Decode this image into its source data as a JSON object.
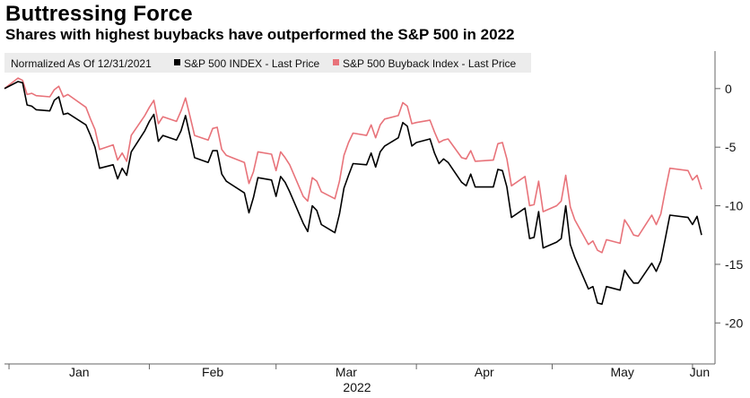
{
  "title": "Buttressing Force",
  "subtitle": "Shares with highest buybacks have outperformed the S&P 500 in 2022",
  "chart_data": {
    "type": "line",
    "title": "Buttressing Force",
    "subtitle": "Shares with highest buybacks have outperformed the S&P 500 in 2022",
    "legend": {
      "placement": "top-left",
      "note": "Normalized As Of 12/31/2021",
      "entries": [
        "S&P 500 INDEX - Last Price",
        "S&P 500 Buyback Index - Last Price"
      ]
    },
    "xlabel": "2022",
    "x_ticks": [
      "Jan",
      "Feb",
      "Mar",
      "Apr",
      "May",
      "Jun"
    ],
    "x_range": [
      "2021-12-31",
      "2022-06-03"
    ],
    "y_axis_side": "right",
    "ylim": [
      -23.5,
      3.2
    ],
    "y_ticks": [
      0,
      -5,
      -10,
      -15,
      -20
    ],
    "grid": false,
    "x": [
      "2021-12-31",
      "2022-01-03",
      "2022-01-04",
      "2022-01-05",
      "2022-01-06",
      "2022-01-07",
      "2022-01-10",
      "2022-01-11",
      "2022-01-12",
      "2022-01-13",
      "2022-01-14",
      "2022-01-18",
      "2022-01-19",
      "2022-01-20",
      "2022-01-21",
      "2022-01-24",
      "2022-01-25",
      "2022-01-26",
      "2022-01-27",
      "2022-01-28",
      "2022-01-31",
      "2022-02-01",
      "2022-02-02",
      "2022-02-03",
      "2022-02-04",
      "2022-02-07",
      "2022-02-08",
      "2022-02-09",
      "2022-02-10",
      "2022-02-11",
      "2022-02-14",
      "2022-02-15",
      "2022-02-16",
      "2022-02-17",
      "2022-02-18",
      "2022-02-22",
      "2022-02-23",
      "2022-02-24",
      "2022-02-25",
      "2022-02-28",
      "2022-03-01",
      "2022-03-02",
      "2022-03-03",
      "2022-03-04",
      "2022-03-07",
      "2022-03-08",
      "2022-03-09",
      "2022-03-10",
      "2022-03-11",
      "2022-03-14",
      "2022-03-15",
      "2022-03-16",
      "2022-03-17",
      "2022-03-18",
      "2022-03-21",
      "2022-03-22",
      "2022-03-23",
      "2022-03-24",
      "2022-03-25",
      "2022-03-28",
      "2022-03-29",
      "2022-03-30",
      "2022-03-31",
      "2022-04-01",
      "2022-04-04",
      "2022-04-05",
      "2022-04-06",
      "2022-04-07",
      "2022-04-08",
      "2022-04-11",
      "2022-04-12",
      "2022-04-13",
      "2022-04-14",
      "2022-04-18",
      "2022-04-19",
      "2022-04-20",
      "2022-04-21",
      "2022-04-22",
      "2022-04-25",
      "2022-04-26",
      "2022-04-27",
      "2022-04-28",
      "2022-04-29",
      "2022-05-02",
      "2022-05-03",
      "2022-05-04",
      "2022-05-05",
      "2022-05-06",
      "2022-05-09",
      "2022-05-10",
      "2022-05-11",
      "2022-05-12",
      "2022-05-13",
      "2022-05-16",
      "2022-05-17",
      "2022-05-18",
      "2022-05-19",
      "2022-05-20",
      "2022-05-23",
      "2022-05-24",
      "2022-05-25",
      "2022-05-26",
      "2022-05-27",
      "2022-05-31",
      "2022-06-01",
      "2022-06-02",
      "2022-06-03"
    ],
    "series": [
      {
        "name": "S&P 500 INDEX - Last Price",
        "color": "#000000",
        "values": [
          0,
          0.6,
          0.5,
          -1.4,
          -1.5,
          -1.8,
          -1.9,
          -1.0,
          -0.7,
          -2.2,
          -2.1,
          -3.1,
          -4.0,
          -5.0,
          -6.8,
          -6.5,
          -7.7,
          -6.8,
          -7.4,
          -5.4,
          -3.6,
          -2.8,
          -2.2,
          -4.5,
          -4.0,
          -4.4,
          -3.6,
          -2.3,
          -4.1,
          -5.9,
          -6.3,
          -5.3,
          -5.3,
          -7.3,
          -7.9,
          -8.9,
          -10.6,
          -9.3,
          -7.6,
          -7.8,
          -9.2,
          -7.5,
          -8.0,
          -8.8,
          -11.5,
          -12.2,
          -10.0,
          -10.4,
          -11.6,
          -12.3,
          -10.7,
          -8.5,
          -7.4,
          -6.4,
          -6.5,
          -5.5,
          -6.7,
          -5.4,
          -4.9,
          -4.2,
          -2.9,
          -3.2,
          -4.9,
          -4.6,
          -4.3,
          -5.5,
          -6.4,
          -6.0,
          -6.3,
          -8.0,
          -8.3,
          -7.3,
          -8.4,
          -8.4,
          -6.9,
          -7.0,
          -8.4,
          -11.0,
          -10.2,
          -12.8,
          -12.7,
          -10.5,
          -13.6,
          -13.1,
          -12.8,
          -10.0,
          -13.3,
          -14.4,
          -17.1,
          -16.9,
          -18.3,
          -18.4,
          -16.9,
          -17.2,
          -15.5,
          -16.1,
          -16.6,
          -16.6,
          -14.9,
          -15.6,
          -14.7,
          -12.8,
          -10.8,
          -11.0,
          -11.6,
          -10.9,
          -12.5
        ]
      },
      {
        "name": "S&P 500 Buyback Index - Last Price",
        "color": "#e8737a",
        "values": [
          0,
          0.9,
          0.7,
          -0.5,
          -0.4,
          -0.6,
          -0.7,
          -0.1,
          0.2,
          -0.7,
          -0.5,
          -1.6,
          -2.6,
          -3.5,
          -5.2,
          -4.8,
          -6.1,
          -5.5,
          -6.2,
          -4.0,
          -2.3,
          -1.6,
          -1.0,
          -3.0,
          -2.4,
          -2.8,
          -1.9,
          -0.8,
          -2.4,
          -4.0,
          -4.4,
          -3.4,
          -3.3,
          -5.2,
          -5.7,
          -6.3,
          -8.1,
          -7.1,
          -5.4,
          -5.6,
          -7.0,
          -5.4,
          -5.9,
          -6.5,
          -9.2,
          -9.6,
          -7.6,
          -7.9,
          -8.8,
          -9.4,
          -7.9,
          -5.7,
          -4.6,
          -3.8,
          -4.0,
          -3.1,
          -4.2,
          -3.1,
          -2.6,
          -2.3,
          -1.2,
          -1.5,
          -3.0,
          -2.9,
          -2.7,
          -3.7,
          -4.6,
          -4.4,
          -4.3,
          -5.9,
          -6.0,
          -5.3,
          -6.2,
          -6.1,
          -4.7,
          -4.6,
          -6.0,
          -8.3,
          -7.5,
          -10.0,
          -9.9,
          -7.9,
          -10.5,
          -10.0,
          -9.6,
          -7.4,
          -10.1,
          -11.2,
          -13.3,
          -13.0,
          -13.8,
          -14.0,
          -12.9,
          -13.2,
          -11.2,
          -11.8,
          -12.5,
          -12.6,
          -10.8,
          -11.6,
          -10.7,
          -8.7,
          -6.8,
          -7.0,
          -7.8,
          -7.4,
          -8.6
        ]
      }
    ]
  }
}
